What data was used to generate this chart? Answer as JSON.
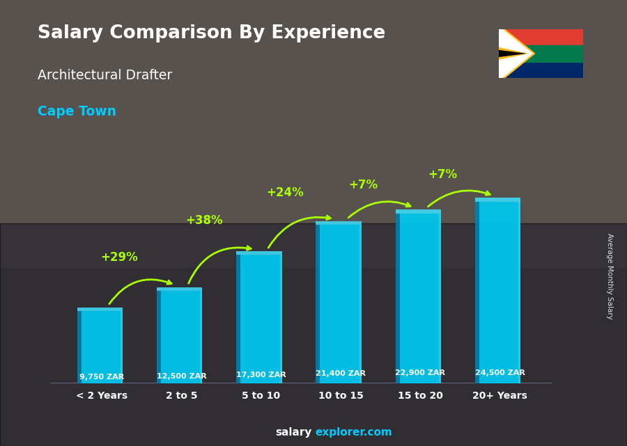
{
  "title_line1": "Salary Comparison By Experience",
  "title_line2": "Architectural Drafter",
  "city": "Cape Town",
  "categories": [
    "< 2 Years",
    "2 to 5",
    "5 to 10",
    "10 to 15",
    "15 to 20",
    "20+ Years"
  ],
  "values": [
    9750,
    12500,
    17300,
    21400,
    22900,
    24500
  ],
  "value_labels": [
    "9,750 ZAR",
    "12,500 ZAR",
    "17,300 ZAR",
    "21,400 ZAR",
    "22,900 ZAR",
    "24,500 ZAR"
  ],
  "pct_labels": [
    null,
    "+29%",
    "+38%",
    "+24%",
    "+7%",
    "+7%"
  ],
  "bar_color_face": "#00c8f0",
  "bar_color_side": "#0080b0",
  "bar_color_top": "#40e0ff",
  "ylabel": "Average Monthly Salary",
  "city_color": "#00ccff",
  "pct_color": "#aaff00",
  "ylim_max": 30000,
  "footer_salary_color": "#ffffff",
  "footer_explorer_color": "#00ccff"
}
